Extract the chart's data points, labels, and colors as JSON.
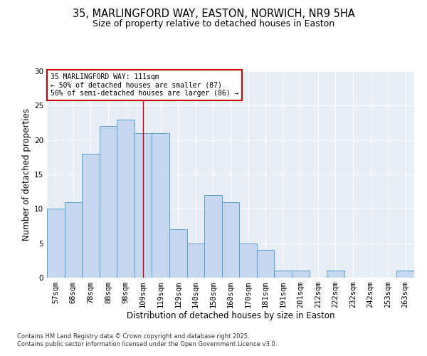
{
  "title1": "35, MARLINGFORD WAY, EASTON, NORWICH, NR9 5HA",
  "title2": "Size of property relative to detached houses in Easton",
  "xlabel": "Distribution of detached houses by size in Easton",
  "ylabel": "Number of detached properties",
  "categories": [
    "57sqm",
    "68sqm",
    "78sqm",
    "88sqm",
    "98sqm",
    "109sqm",
    "119sqm",
    "129sqm",
    "140sqm",
    "150sqm",
    "160sqm",
    "170sqm",
    "181sqm",
    "191sqm",
    "201sqm",
    "212sqm",
    "222sqm",
    "232sqm",
    "242sqm",
    "253sqm",
    "263sqm"
  ],
  "values": [
    10,
    11,
    18,
    22,
    23,
    21,
    21,
    7,
    5,
    12,
    11,
    5,
    4,
    1,
    1,
    0,
    1,
    0,
    0,
    0,
    1
  ],
  "bar_color": "#c5d8f0",
  "bar_edge_color": "#5a9fd4",
  "vline_x": 5,
  "vline_color": "#cc0000",
  "annotation_text": "35 MARLINGFORD WAY: 111sqm\n← 50% of detached houses are smaller (87)\n50% of semi-detached houses are larger (86) →",
  "annotation_box_color": "white",
  "annotation_box_edge": "#cc0000",
  "ylim": [
    0,
    30
  ],
  "yticks": [
    0,
    5,
    10,
    15,
    20,
    25,
    30
  ],
  "bg_color": "#e8eef6",
  "footer_text": "Contains HM Land Registry data © Crown copyright and database right 2025.\nContains public sector information licensed under the Open Government Licence v3.0.",
  "title1_fontsize": 10.5,
  "title2_fontsize": 9,
  "axis_fontsize": 8.5,
  "tick_fontsize": 7.5,
  "ann_fontsize": 7,
  "footer_fontsize": 6
}
